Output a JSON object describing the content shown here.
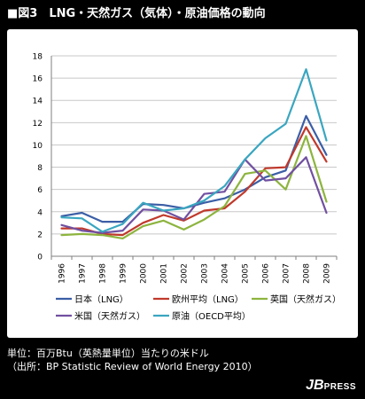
{
  "title": "■図3　LNG・天然ガス（気体）・原油価格の動向",
  "notes": {
    "line1": "単位：百万Btu（英熱量単位）当たりの米ドル",
    "line2": "（出所：BP Statistic Review of World Energy 2010）"
  },
  "logo": {
    "big": "JB",
    "small": "PRESS"
  },
  "chart_data": {
    "type": "line",
    "x": [
      "1996",
      "1997",
      "1998",
      "1999",
      "2000",
      "2001",
      "2002",
      "2003",
      "2004",
      "2005",
      "2006",
      "2007",
      "2008",
      "2009"
    ],
    "ylim": [
      0,
      18
    ],
    "yticks": [
      0,
      2,
      4,
      6,
      8,
      10,
      12,
      14,
      16,
      18
    ],
    "grid": true,
    "legend_position": "bottom",
    "series": [
      {
        "name": "日本（LNG）",
        "color": "#3b5ea6",
        "values": [
          3.6,
          3.9,
          3.1,
          3.1,
          4.7,
          4.6,
          4.3,
          4.8,
          5.2,
          6.0,
          7.1,
          7.7,
          12.6,
          9.1
        ]
      },
      {
        "name": "欧州平均（LNG）",
        "color": "#c0392b",
        "values": [
          2.5,
          2.5,
          2.0,
          1.9,
          3.0,
          3.7,
          3.2,
          4.1,
          4.3,
          5.8,
          7.9,
          8.0,
          11.6,
          8.5
        ]
      },
      {
        "name": "英国（天然ガス）",
        "color": "#8db43e",
        "values": [
          1.9,
          2.0,
          1.9,
          1.6,
          2.7,
          3.2,
          2.4,
          3.3,
          4.5,
          7.4,
          7.7,
          6.0,
          10.8,
          4.9
        ]
      },
      {
        "name": "米国（天然ガス）",
        "color": "#7150a0",
        "values": [
          2.8,
          2.3,
          2.1,
          2.3,
          4.2,
          4.1,
          3.3,
          5.6,
          5.8,
          8.7,
          6.8,
          7.0,
          8.9,
          3.9
        ]
      },
      {
        "name": "原油（OECD平均）",
        "color": "#3aa6c0",
        "values": [
          3.5,
          3.4,
          2.2,
          2.9,
          4.8,
          4.1,
          4.3,
          5.0,
          6.3,
          8.7,
          10.6,
          11.9,
          16.8,
          10.4
        ]
      }
    ]
  }
}
